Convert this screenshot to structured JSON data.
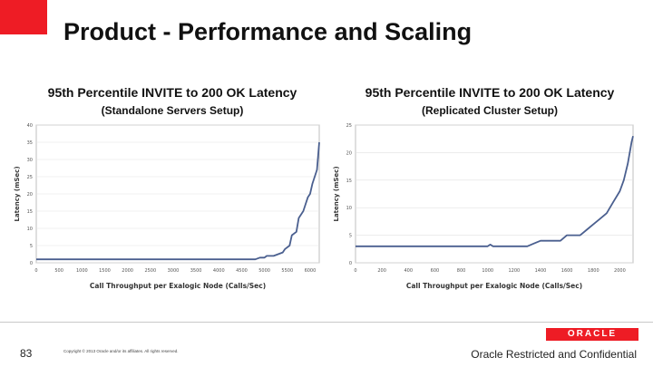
{
  "slide": {
    "title": "Product - Performance and Scaling",
    "page_number": "83",
    "copyright": "Copyright © 2013 Oracle and/or its affiliates. All rights reserved.",
    "confidential": "Oracle Restricted and Confidential",
    "logo_text": "ORACLE",
    "accent_color": "#ee1c25"
  },
  "chart_data": [
    {
      "type": "line",
      "title": "95th Percentile INVITE to 200 OK Latency",
      "subtitle": "(Standalone Servers Setup)",
      "xlabel": "Call Throughput per Exalogic Node (Calls/Sec)",
      "ylabel": "Latency (mSec)",
      "xlim": [
        0,
        6200
      ],
      "ylim": [
        0,
        40
      ],
      "xticks": [
        "0",
        "500",
        "1000",
        "1500",
        "2000",
        "2500",
        "3000",
        "3500",
        "4000",
        "4500",
        "5000",
        "5500",
        "6000"
      ],
      "yticks": [
        "0",
        "5",
        "10",
        "15",
        "20",
        "25",
        "30",
        "35",
        "40"
      ],
      "series_color": "#4a5f8f",
      "series": [
        {
          "name": "Latency",
          "x": [
            0,
            4500,
            4800,
            4900,
            5000,
            5050,
            5200,
            5300,
            5400,
            5450,
            5550,
            5600,
            5700,
            5750,
            5850,
            5900,
            5950,
            6000,
            6050,
            6100,
            6150,
            6200
          ],
          "y": [
            1,
            1,
            1,
            1.5,
            1.5,
            2,
            2,
            2.5,
            3,
            4,
            5,
            8,
            9,
            13,
            15,
            17,
            19,
            20,
            23,
            25,
            27,
            35
          ]
        }
      ]
    },
    {
      "type": "line",
      "title": "95th Percentile INVITE to 200 OK Latency",
      "subtitle": "(Replicated Cluster Setup)",
      "xlabel": "Call Throughput per Exalogic Node (Calls/Sec)",
      "ylabel": "Latency (mSec)",
      "xlim": [
        0,
        2100
      ],
      "ylim": [
        0,
        25
      ],
      "xticks": [
        "0",
        "200",
        "400",
        "600",
        "800",
        "1000",
        "1200",
        "1400",
        "1600",
        "1800",
        "2000"
      ],
      "yticks": [
        "0",
        "5",
        "10",
        "15",
        "20",
        "25"
      ],
      "series_color": "#4a5f8f",
      "series": [
        {
          "name": "Latency",
          "x": [
            0,
            1000,
            1020,
            1040,
            1060,
            1300,
            1350,
            1400,
            1450,
            1550,
            1600,
            1700,
            1750,
            1800,
            1850,
            1900,
            1950,
            2000,
            2030,
            2060,
            2090,
            2100
          ],
          "y": [
            3,
            3,
            3.3,
            3,
            3,
            3,
            3.5,
            4,
            4,
            4,
            5,
            5,
            6,
            7,
            8,
            9,
            11,
            13,
            15,
            18,
            22,
            23
          ]
        }
      ]
    }
  ]
}
